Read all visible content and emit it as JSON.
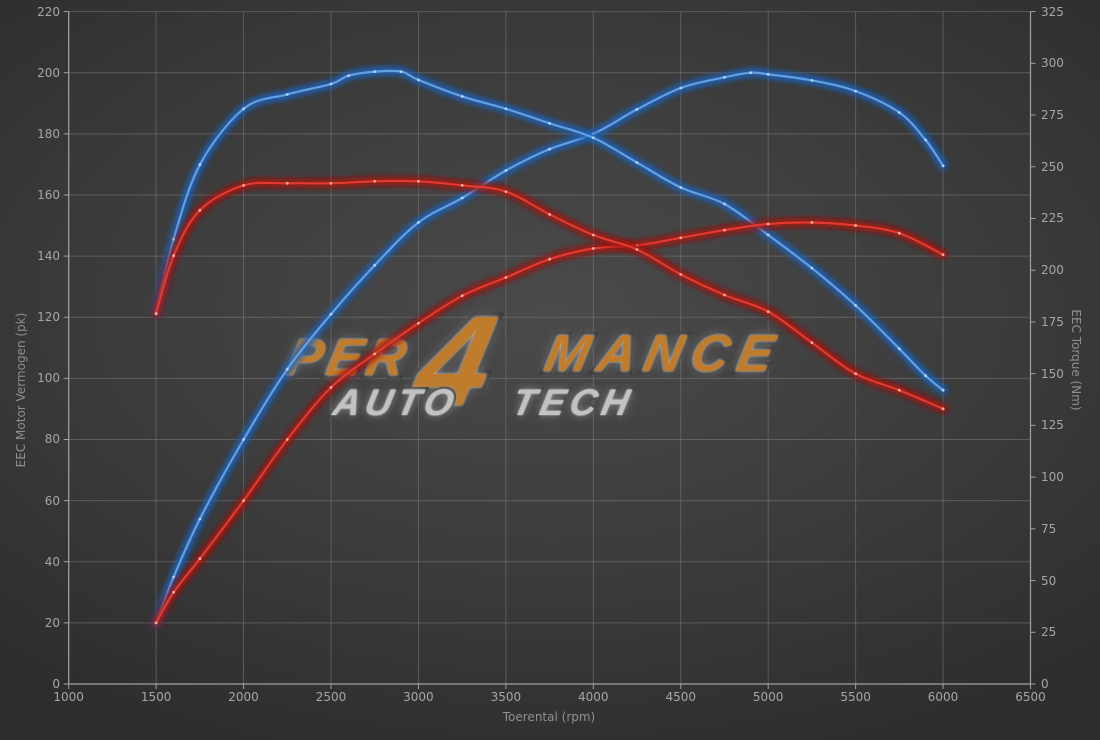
{
  "watermark": {
    "line1_left": "per",
    "big_four": "4",
    "line1_right": "mance",
    "line2_left": "auto",
    "line2_right": "tech",
    "orange": "#bf7c2c",
    "silver": "#c2c2c2",
    "outline_dark": "#3a3a3a"
  },
  "colors": {
    "background_center": "#4a4a4a",
    "background_edge": "#2d2d2d",
    "gridline": "#828282",
    "axis_line": "#a2a2a2",
    "tick_label": "#a6a6a6",
    "axis_title": "#8f8f8f"
  },
  "chart_data": {
    "type": "line",
    "title": "",
    "xlabel": "Toerental (rpm)",
    "ylabel_left": "EEC Motor Vermogen (pk)",
    "ylabel_right": "EEC Torque (Nm)",
    "x_range": [
      1000,
      6500
    ],
    "y_left_range": [
      0,
      220
    ],
    "y_right_range": [
      0,
      325
    ],
    "x_ticks": [
      1000,
      1500,
      2000,
      2500,
      3000,
      3500,
      4000,
      4500,
      5000,
      5500,
      6000,
      6500
    ],
    "y_left_ticks": [
      0,
      20,
      40,
      60,
      80,
      100,
      120,
      140,
      160,
      180,
      200,
      220
    ],
    "y_right_ticks": [
      0,
      25,
      50,
      75,
      100,
      125,
      150,
      175,
      200,
      225,
      250,
      275,
      300,
      325
    ],
    "grid": true,
    "legend_position": "none",
    "series": [
      {
        "name": "power-blue",
        "axis": "left",
        "unit": "pk",
        "color": "#64a0e0",
        "glow": "#1d5fb8",
        "dot": "#bdd9f5",
        "points": [
          [
            1500,
            20
          ],
          [
            1600,
            35
          ],
          [
            1750,
            54
          ],
          [
            2000,
            80
          ],
          [
            2250,
            103
          ],
          [
            2500,
            121
          ],
          [
            2750,
            137
          ],
          [
            3000,
            151
          ],
          [
            3250,
            159
          ],
          [
            3500,
            168
          ],
          [
            3750,
            175
          ],
          [
            4000,
            180
          ],
          [
            4250,
            188
          ],
          [
            4500,
            195
          ],
          [
            4750,
            198.5
          ],
          [
            4900,
            200
          ],
          [
            5000,
            199.5
          ],
          [
            5250,
            197.5
          ],
          [
            5500,
            194
          ],
          [
            5750,
            187
          ],
          [
            5900,
            178
          ],
          [
            6000,
            169.5
          ]
        ]
      },
      {
        "name": "torque-blue",
        "axis": "right",
        "unit": "Nm",
        "color": "#64a0e0",
        "glow": "#1d5fb8",
        "dot": "#bdd9f5",
        "points": [
          [
            1500,
            180
          ],
          [
            1600,
            215
          ],
          [
            1750,
            251
          ],
          [
            2000,
            278
          ],
          [
            2250,
            285
          ],
          [
            2500,
            290
          ],
          [
            2600,
            294
          ],
          [
            2750,
            296
          ],
          [
            2900,
            296
          ],
          [
            3000,
            292
          ],
          [
            3250,
            284
          ],
          [
            3500,
            278
          ],
          [
            3750,
            271
          ],
          [
            4000,
            264
          ],
          [
            4250,
            252
          ],
          [
            4500,
            240
          ],
          [
            4750,
            232
          ],
          [
            5000,
            217
          ],
          [
            5250,
            201
          ],
          [
            5500,
            183
          ],
          [
            5750,
            162
          ],
          [
            5900,
            149
          ],
          [
            6000,
            142
          ]
        ]
      },
      {
        "name": "power-red",
        "axis": "left",
        "unit": "pk",
        "color": "#e23a33",
        "glow": "#a01410",
        "dot": "#ffb9b0",
        "points": [
          [
            1500,
            20
          ],
          [
            1600,
            30
          ],
          [
            1750,
            41
          ],
          [
            2000,
            60
          ],
          [
            2250,
            80
          ],
          [
            2500,
            97
          ],
          [
            2750,
            108
          ],
          [
            3000,
            118
          ],
          [
            3250,
            127
          ],
          [
            3500,
            133
          ],
          [
            3750,
            139
          ],
          [
            4000,
            142.5
          ],
          [
            4250,
            143.5
          ],
          [
            4500,
            146
          ],
          [
            4750,
            148.5
          ],
          [
            5000,
            150.5
          ],
          [
            5250,
            151
          ],
          [
            5500,
            150
          ],
          [
            5750,
            147.5
          ],
          [
            6000,
            140.5
          ]
        ]
      },
      {
        "name": "torque-red",
        "axis": "right",
        "unit": "Nm",
        "color": "#e23a33",
        "glow": "#a01410",
        "dot": "#ffb9b0",
        "points": [
          [
            1500,
            179
          ],
          [
            1600,
            207
          ],
          [
            1750,
            229
          ],
          [
            2000,
            241
          ],
          [
            2250,
            242
          ],
          [
            2500,
            242
          ],
          [
            2750,
            243
          ],
          [
            3000,
            243
          ],
          [
            3250,
            241
          ],
          [
            3500,
            238
          ],
          [
            3750,
            227
          ],
          [
            4000,
            217
          ],
          [
            4250,
            210
          ],
          [
            4500,
            198
          ],
          [
            4750,
            188
          ],
          [
            5000,
            180
          ],
          [
            5250,
            165
          ],
          [
            5500,
            150
          ],
          [
            5750,
            142
          ],
          [
            6000,
            133
          ]
        ]
      }
    ]
  }
}
